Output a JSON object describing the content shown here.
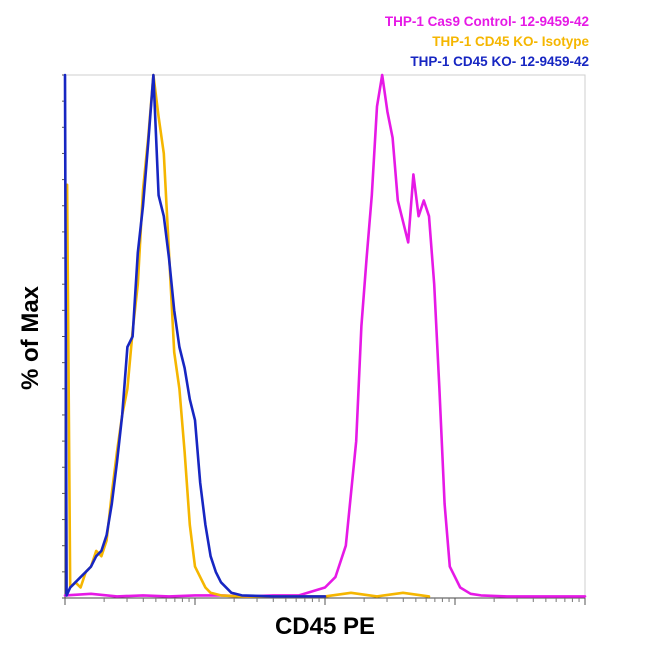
{
  "chart_data": {
    "type": "line",
    "title": "",
    "xlabel": "CD45 PE",
    "ylabel": "% of Max",
    "x_scale": "log",
    "xlim": [
      0,
      100
    ],
    "ylim": [
      0,
      100
    ],
    "grid": false,
    "legend_placement": "top-right",
    "series": [
      {
        "name": "THP-1 Cas9 Control- 12-9459-42",
        "color": "#e619e6",
        "x": [
          0,
          5,
          10,
          15,
          20,
          25,
          30,
          35,
          40,
          45,
          50,
          52,
          54,
          56,
          57,
          58,
          59,
          60,
          61,
          62,
          63,
          64,
          65,
          66,
          67,
          68,
          69,
          70,
          71,
          72,
          73,
          74,
          76,
          78,
          80,
          85,
          90,
          95,
          100
        ],
        "y": [
          0.5,
          0.8,
          0.3,
          0.5,
          0.3,
          0.5,
          0.5,
          0.3,
          0.5,
          0.5,
          2,
          4,
          10,
          30,
          52,
          65,
          77,
          94,
          100,
          93,
          88,
          76,
          72,
          68,
          81,
          73,
          76,
          73,
          60,
          40,
          18,
          6,
          2,
          0.8,
          0.5,
          0.3,
          0.3,
          0.3,
          0.3
        ]
      },
      {
        "name": "THP-1 CD45 KO- Isotype",
        "color": "#f5b600",
        "x": [
          0.4,
          1,
          2,
          3,
          4,
          5,
          6,
          7,
          8,
          9,
          10,
          11,
          12,
          13,
          14,
          15,
          16,
          17,
          18,
          19,
          20,
          21,
          22,
          23,
          24,
          25,
          26,
          27,
          28,
          30,
          34,
          40,
          50,
          55,
          60,
          65,
          70
        ],
        "y": [
          79,
          2,
          3,
          2,
          5,
          6,
          9,
          8,
          11,
          20,
          28,
          35,
          40,
          51,
          60,
          78,
          88,
          100,
          92,
          85,
          66,
          47,
          40,
          28,
          14,
          6,
          4,
          2,
          1,
          0.5,
          0.3,
          0.3,
          0.3,
          1,
          0.3,
          1,
          0.3
        ]
      },
      {
        "name": "THP-1 CD45 KO- 12-9459-42",
        "color": "#1726c2",
        "x": [
          0,
          0.3,
          1,
          2,
          3,
          4,
          5,
          6,
          7,
          8,
          9,
          10,
          11,
          12,
          13,
          14,
          15,
          16,
          17,
          18,
          19,
          20,
          21,
          22,
          23,
          24,
          25,
          26,
          27,
          28,
          29,
          30,
          32,
          34,
          40,
          50
        ],
        "y": [
          100,
          0.5,
          2,
          3,
          4,
          5,
          6,
          8,
          9,
          12,
          18,
          26,
          35,
          48,
          50,
          66,
          75,
          87,
          100,
          77,
          73,
          65,
          55,
          48,
          44,
          38,
          34,
          22,
          14,
          8,
          5,
          3,
          1,
          0.5,
          0.3,
          0.3
        ]
      }
    ]
  }
}
